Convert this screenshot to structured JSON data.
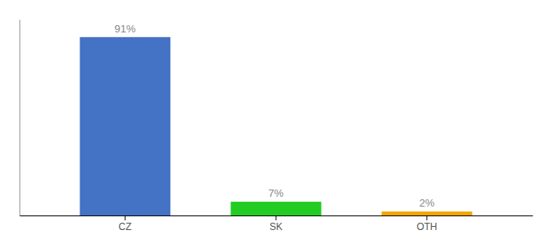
{
  "chart_data": {
    "type": "bar",
    "categories": [
      "CZ",
      "SK",
      "OTH"
    ],
    "values": [
      91,
      7,
      2
    ],
    "value_labels": [
      "91%",
      "7%",
      "2%"
    ],
    "colors": [
      "#4472c4",
      "#22cc22",
      "#f0a500"
    ],
    "data_labels": true,
    "ylim": [
      0,
      100
    ],
    "tick_labels": "x"
  }
}
